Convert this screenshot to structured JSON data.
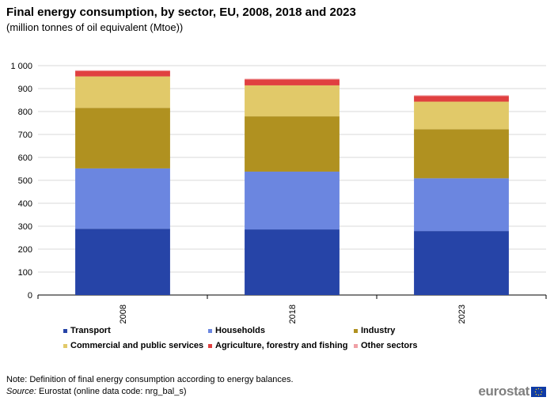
{
  "title": "Final energy consumption, by sector, EU, 2008, 2018 and 2023",
  "subtitle": "(million tonnes of oil equivalent (Mtoe))",
  "note": "Note: Definition of final energy consumption according to energy balances.",
  "source_label": "Source:",
  "source_text": " Eurostat (online data code: nrg_bal_s)",
  "logo_text": "eurostat",
  "chart_data": {
    "type": "bar",
    "stacked": true,
    "title": "Final energy consumption, by sector, EU, 2008, 2018 and 2023",
    "ylabel": "million tonnes of oil equivalent (Mtoe)",
    "ylim": [
      0,
      1000
    ],
    "yticks": [
      0,
      100,
      200,
      300,
      400,
      500,
      600,
      700,
      800,
      900,
      1000
    ],
    "ytick_labels": [
      "0",
      "100",
      "200",
      "300",
      "400",
      "500",
      "600",
      "700",
      "800",
      "900",
      "1 000"
    ],
    "categories": [
      "2008",
      "2018",
      "2023"
    ],
    "series": [
      {
        "name": "Transport",
        "color": "#2644a7",
        "values": [
          289,
          286,
          279
        ]
      },
      {
        "name": "Households",
        "color": "#6b86e0",
        "values": [
          263,
          252,
          230
        ]
      },
      {
        "name": "Industry",
        "color": "#b09120",
        "values": [
          264,
          241,
          214
        ]
      },
      {
        "name": "Commercial and public services",
        "color": "#e1c969",
        "values": [
          137,
          135,
          120
        ]
      },
      {
        "name": "Agriculture, forestry and fishing",
        "color": "#e04040",
        "values": [
          24,
          26,
          25
        ]
      },
      {
        "name": "Other sectors",
        "color": "#f0a0a6",
        "values": [
          3,
          3,
          3
        ]
      }
    ],
    "legend_position": "bottom"
  }
}
